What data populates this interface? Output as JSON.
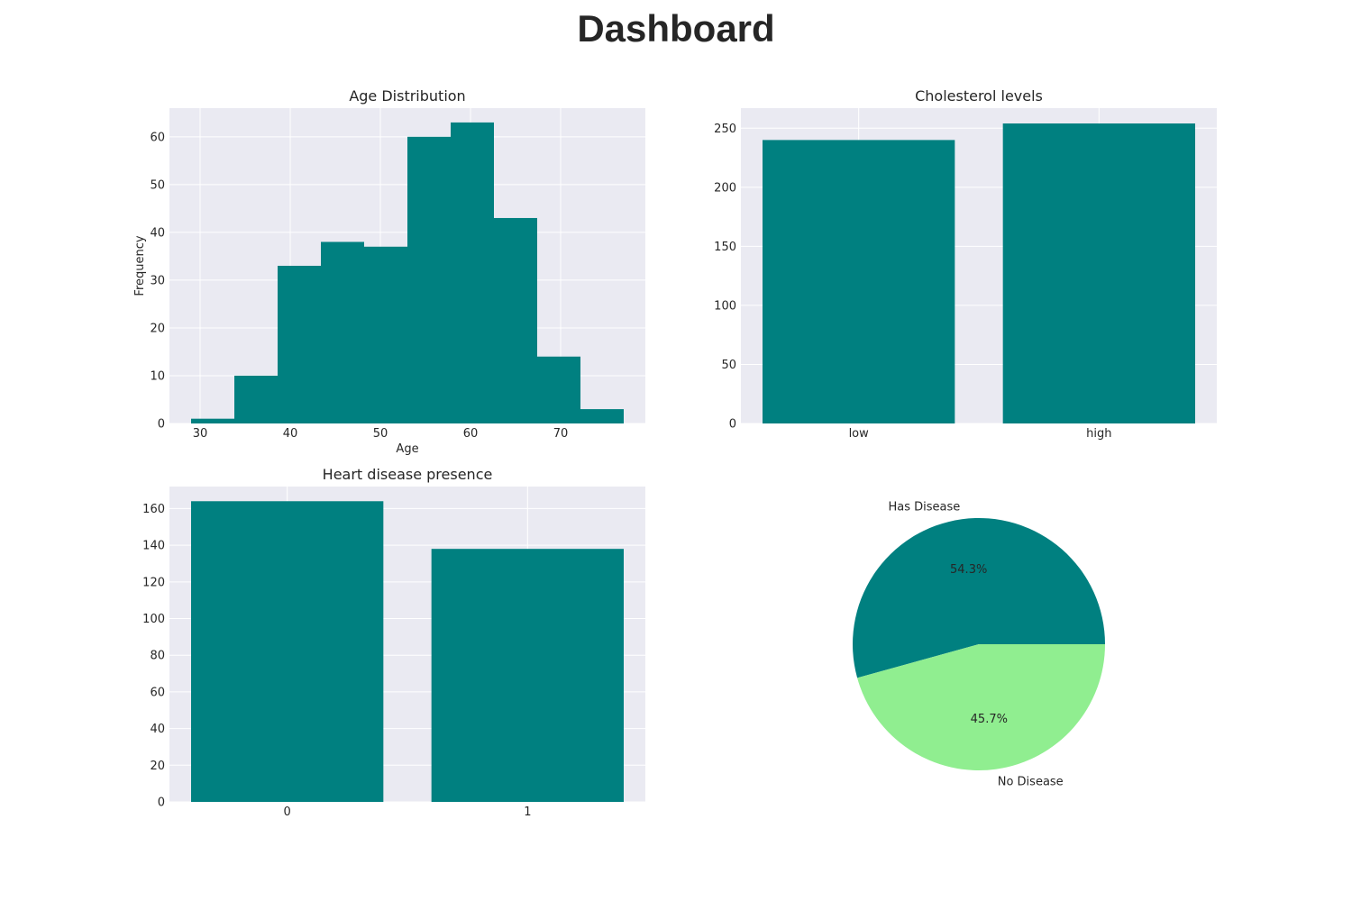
{
  "page": {
    "title": "Dashboard"
  },
  "colors": {
    "bar": "#008080",
    "pie_has": "#008080",
    "pie_no": "#90ee90",
    "plot_bg": "#eaeaf2"
  },
  "chart_data": [
    {
      "type": "bar",
      "subtype": "histogram",
      "title": "Age Distribution",
      "xlabel": "Age",
      "ylabel": "Frequency",
      "bin_edges": [
        29,
        33.8,
        38.6,
        43.4,
        48.2,
        53,
        57.8,
        62.6,
        67.4,
        72.2,
        77
      ],
      "values": [
        1,
        10,
        33,
        38,
        37,
        60,
        63,
        43,
        14,
        3
      ],
      "xlim": [
        26.6,
        79.4
      ],
      "ylim": [
        0,
        66
      ],
      "xticks": [
        30,
        40,
        50,
        60,
        70
      ],
      "yticks": [
        0,
        10,
        20,
        30,
        40,
        50,
        60
      ],
      "grid": true
    },
    {
      "type": "bar",
      "title": "Cholesterol levels",
      "xlabel": "",
      "ylabel": "",
      "categories": [
        "low",
        "high"
      ],
      "values": [
        240,
        254
      ],
      "ylim": [
        0,
        267
      ],
      "yticks": [
        0,
        50,
        100,
        150,
        200,
        250
      ],
      "grid": true
    },
    {
      "type": "bar",
      "title": "Heart disease presence",
      "xlabel": "",
      "ylabel": "",
      "categories": [
        "0",
        "1"
      ],
      "values": [
        164,
        138
      ],
      "ylim": [
        0,
        172
      ],
      "yticks": [
        0,
        20,
        40,
        60,
        80,
        100,
        120,
        140,
        160
      ],
      "grid": true
    },
    {
      "type": "pie",
      "title": "",
      "labels": [
        "Has Disease",
        "No Disease"
      ],
      "values": [
        54.3,
        45.7
      ],
      "pct_labels": [
        "54.3%",
        "45.7%"
      ],
      "start_angle_deg": 0
    }
  ]
}
